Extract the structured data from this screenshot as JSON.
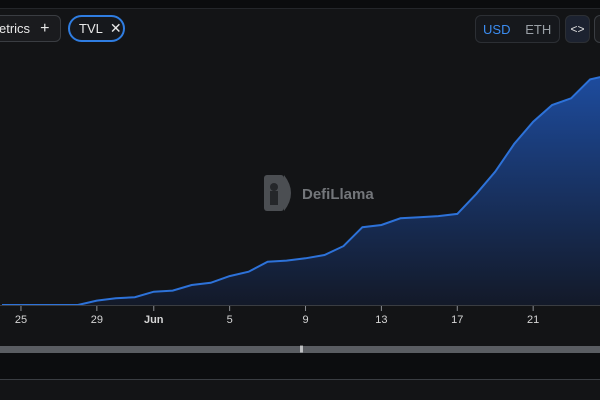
{
  "controls": {
    "metrics_label": "etrics",
    "metrics_add_icon": "plus-icon",
    "tvl_label": "TVL",
    "tvl_remove_icon": "close-icon",
    "currency_options": [
      "USD",
      "ETH"
    ],
    "currency_selected": "USD",
    "embed_label": "<>"
  },
  "watermark": {
    "text": "DefiLlama",
    "icon": "llama-logo-icon"
  },
  "brush": {
    "handle_glyph": "|||"
  },
  "colors": {
    "accent": "#2f7de1",
    "line": "#2d72d9",
    "background": "#131416"
  },
  "chart_data": {
    "type": "area",
    "title": "",
    "xlabel": "",
    "ylabel": "",
    "x_ticks": [
      {
        "label": "25",
        "index": 1
      },
      {
        "label": "29",
        "index": 5
      },
      {
        "label": "Jun",
        "index": 8,
        "bold": true
      },
      {
        "label": "5",
        "index": 12
      },
      {
        "label": "9",
        "index": 16
      },
      {
        "label": "13",
        "index": 20
      },
      {
        "label": "17",
        "index": 24
      },
      {
        "label": "21",
        "index": 28
      }
    ],
    "grid": false,
    "legend": "none",
    "series": [
      {
        "values": [
          0,
          0,
          0,
          0,
          0,
          4,
          6,
          7,
          12,
          13,
          18,
          20,
          26,
          30,
          39,
          40,
          42,
          45,
          53,
          70,
          72,
          78,
          79,
          80,
          82,
          100,
          120,
          145,
          165,
          180,
          186,
          203,
          207
        ]
      }
    ],
    "ylim": [
      0,
      207
    ]
  }
}
